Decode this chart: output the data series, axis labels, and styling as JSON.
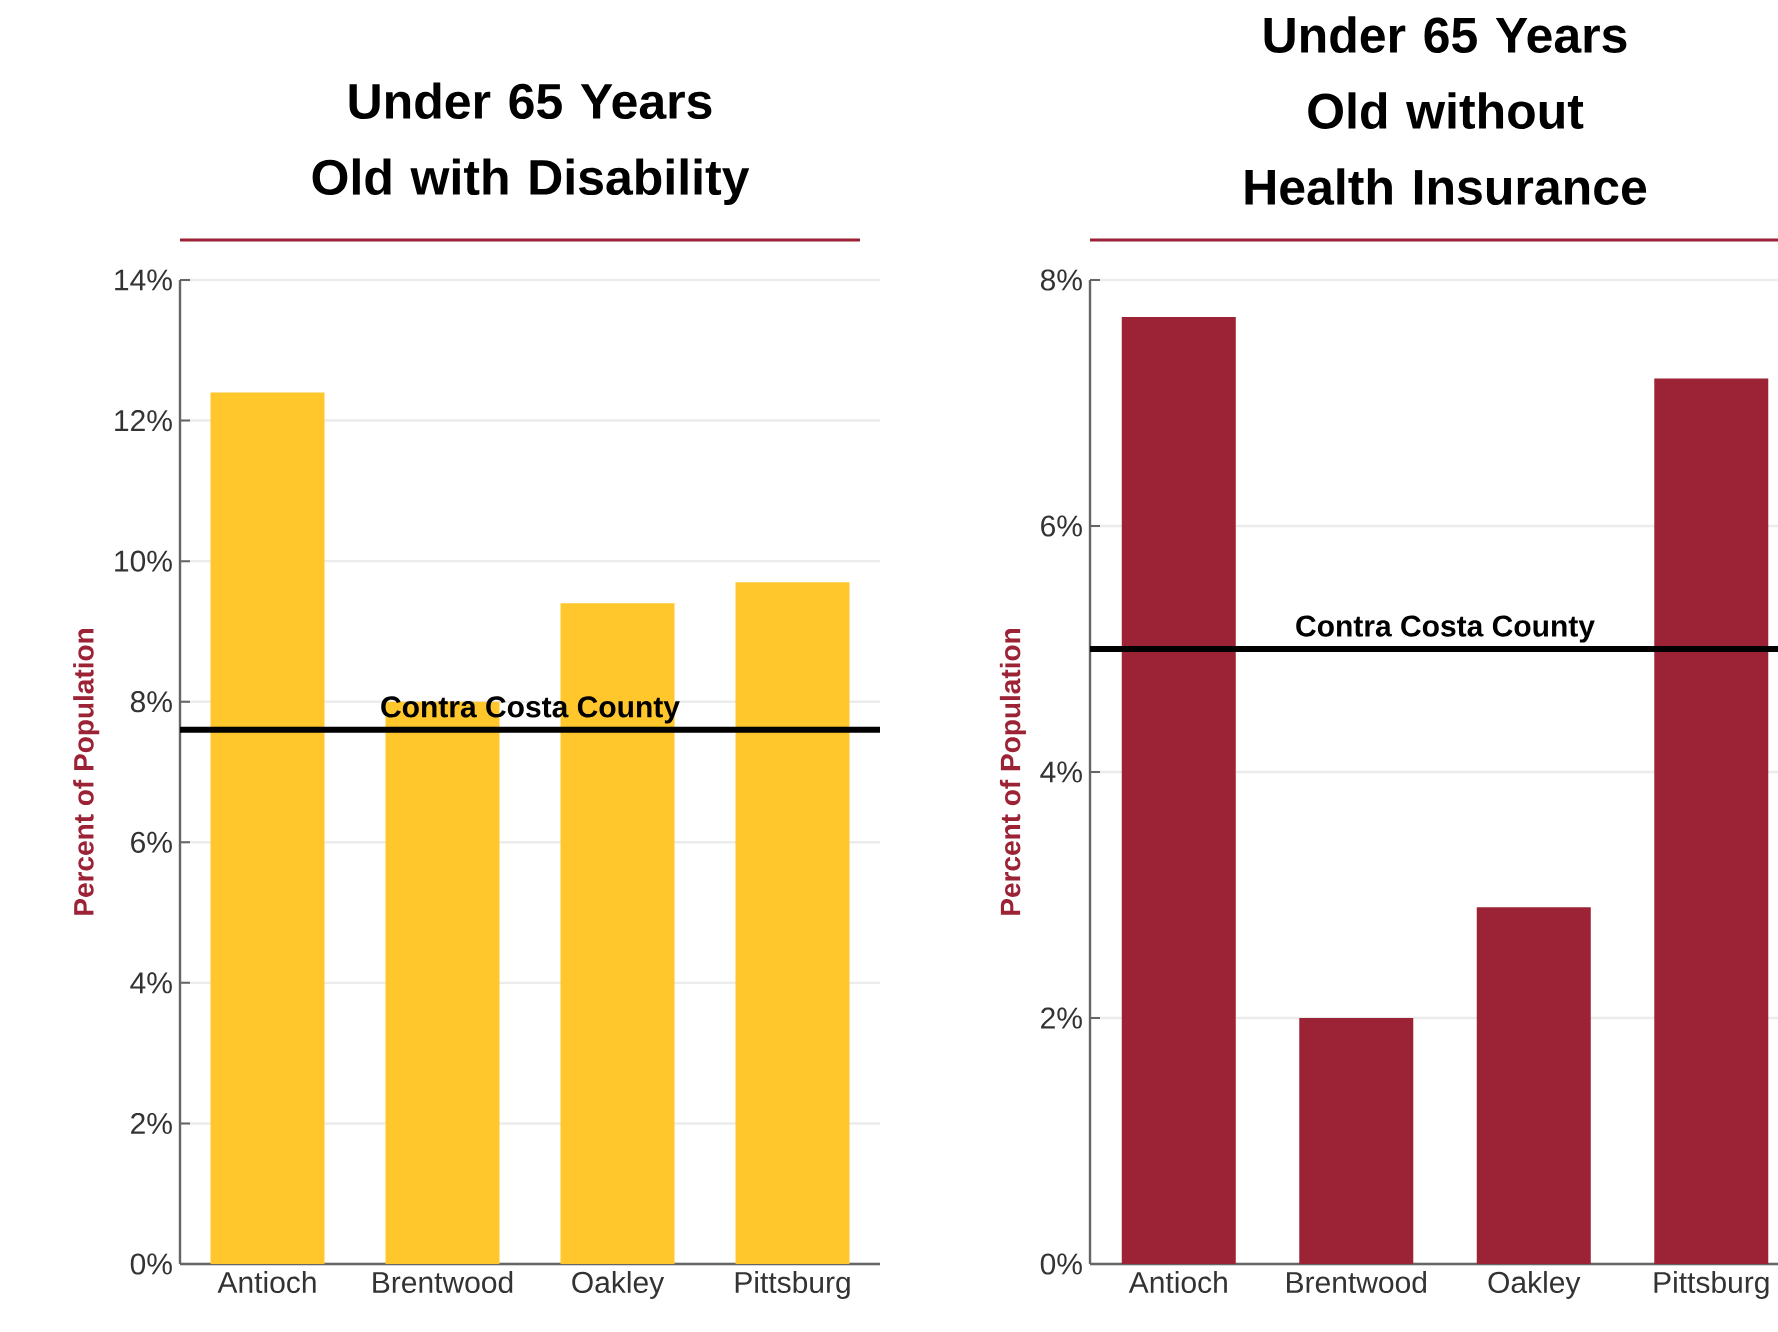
{
  "chart_data": [
    {
      "type": "bar",
      "title": "Under 65 Years Old with Disability",
      "ylabel": "Percent of Population",
      "categories": [
        "Antioch",
        "Brentwood",
        "Oakley",
        "Pittsburg"
      ],
      "values": [
        12.4,
        8.0,
        9.4,
        9.7
      ],
      "color": "#ffc72c",
      "ylim": [
        0,
        14
      ],
      "yticks": [
        {
          "value": 0,
          "label": "0%"
        },
        {
          "value": 2,
          "label": "2%"
        },
        {
          "value": 4,
          "label": "4%"
        },
        {
          "value": 6,
          "label": "6%"
        },
        {
          "value": 8,
          "label": "8%"
        },
        {
          "value": 10,
          "label": "10%"
        },
        {
          "value": 12,
          "label": "12%"
        },
        {
          "value": 14,
          "label": "14%"
        }
      ],
      "grid": "y",
      "ref_lines": [
        {
          "axis": "y",
          "value": 7.6,
          "label": "Contra Costa County",
          "color": "#000000"
        }
      ]
    },
    {
      "type": "bar",
      "title": "Under 65 Years Old without Health Insurance",
      "ylabel": "Percent of Population",
      "categories": [
        "Antioch",
        "Brentwood",
        "Oakley",
        "Pittsburg"
      ],
      "values": [
        7.7,
        2.0,
        2.9,
        7.2
      ],
      "color": "#9b2335",
      "ylim": [
        0,
        8
      ],
      "yticks": [
        {
          "value": 0,
          "label": "0%"
        },
        {
          "value": 2,
          "label": "2%"
        },
        {
          "value": 4,
          "label": "4%"
        },
        {
          "value": 6,
          "label": "6%"
        },
        {
          "value": 8,
          "label": "8%"
        }
      ],
      "grid": "y",
      "ref_lines": [
        {
          "axis": "y",
          "value": 5.0,
          "label": "Contra Costa County",
          "color": "#000000"
        }
      ]
    }
  ]
}
